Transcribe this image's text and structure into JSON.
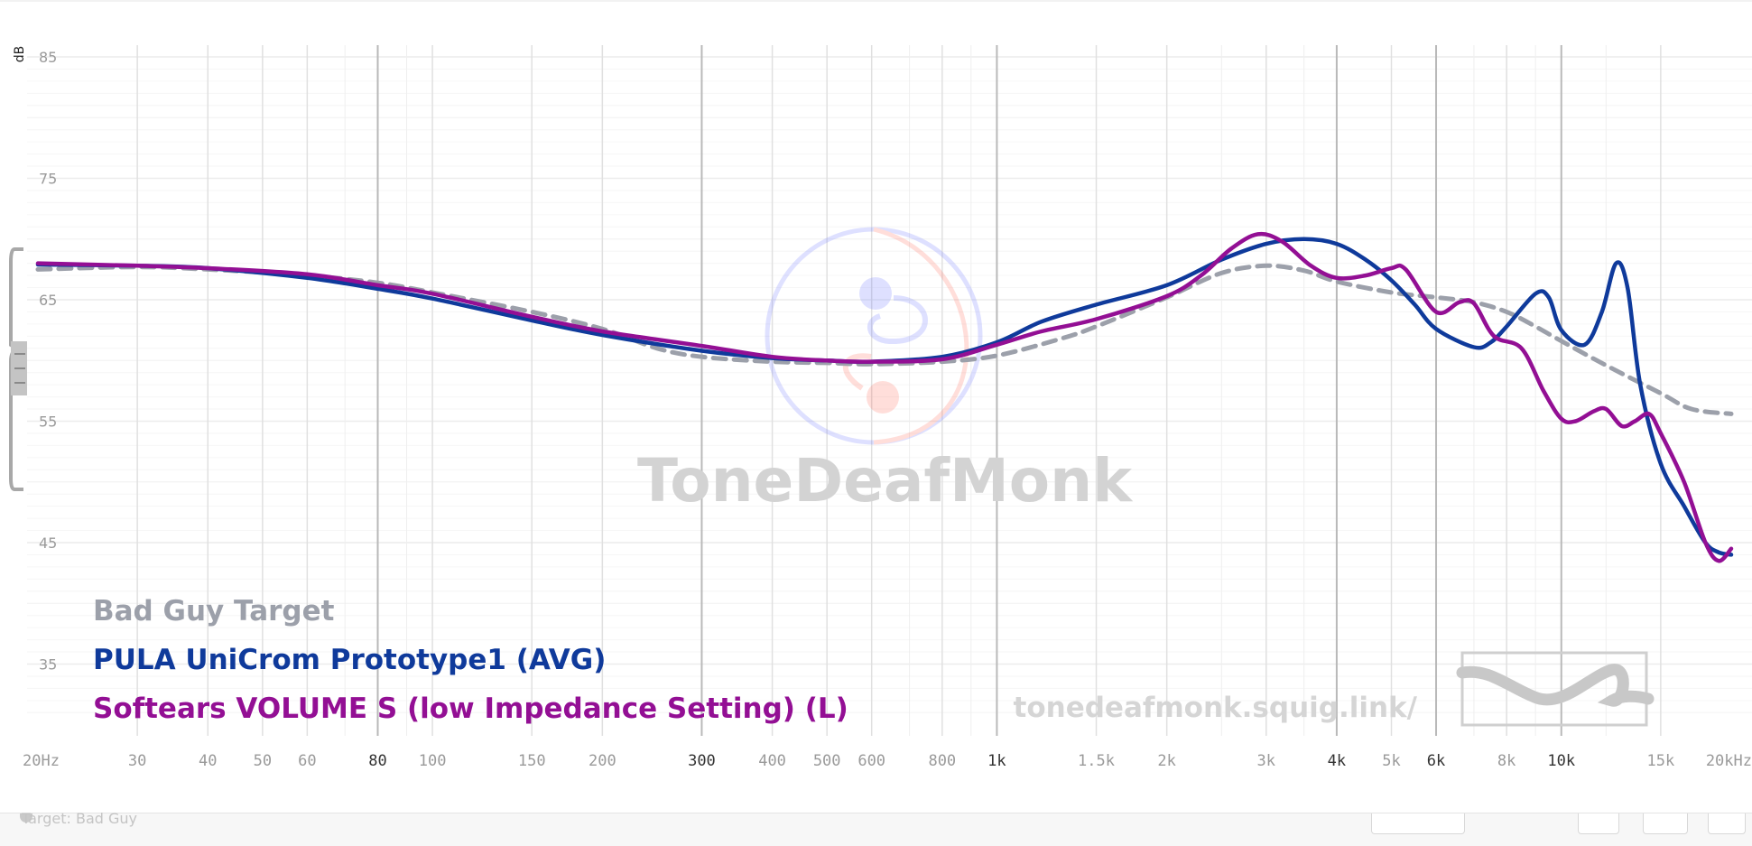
{
  "chart_data": {
    "type": "line",
    "x_scale": "log",
    "xlim": [
      20,
      20000
    ],
    "ylim": [
      30,
      87
    ],
    "ylabel": "dB",
    "y_ticks": [
      35,
      45,
      55,
      65,
      75,
      85
    ],
    "x_ticks": [
      {
        "value": 20,
        "label": "20Hz"
      },
      {
        "value": 30,
        "label": "30"
      },
      {
        "value": 40,
        "label": "40"
      },
      {
        "value": 50,
        "label": "50"
      },
      {
        "value": 60,
        "label": "60"
      },
      {
        "value": 80,
        "label": "80"
      },
      {
        "value": 100,
        "label": "100"
      },
      {
        "value": 150,
        "label": "150"
      },
      {
        "value": 200,
        "label": "200"
      },
      {
        "value": 300,
        "label": "300"
      },
      {
        "value": 400,
        "label": "400"
      },
      {
        "value": 500,
        "label": "500"
      },
      {
        "value": 600,
        "label": "600"
      },
      {
        "value": 800,
        "label": "800"
      },
      {
        "value": 1000,
        "label": "1k"
      },
      {
        "value": 1500,
        "label": "1.5k"
      },
      {
        "value": 2000,
        "label": "2k"
      },
      {
        "value": 3000,
        "label": "3k"
      },
      {
        "value": 4000,
        "label": "4k"
      },
      {
        "value": 5000,
        "label": "5k"
      },
      {
        "value": 6000,
        "label": "6k"
      },
      {
        "value": 8000,
        "label": "8k"
      },
      {
        "value": 10000,
        "label": "10k"
      },
      {
        "value": 15000,
        "label": "15k"
      },
      {
        "value": 20000,
        "label": "20kHz"
      }
    ],
    "grid": true,
    "legend_position": "bottom-left",
    "series": [
      {
        "name": "Bad Guy Target",
        "color": "#9ca0aa",
        "dashed": true,
        "points": [
          [
            20,
            67.5
          ],
          [
            30,
            67.7
          ],
          [
            40,
            67.5
          ],
          [
            60,
            67
          ],
          [
            80,
            66.4
          ],
          [
            100,
            65.6
          ],
          [
            150,
            64
          ],
          [
            200,
            62.6
          ],
          [
            250,
            61
          ],
          [
            300,
            60.3
          ],
          [
            400,
            59.9
          ],
          [
            500,
            59.8
          ],
          [
            600,
            59.7
          ],
          [
            800,
            59.9
          ],
          [
            1000,
            60.4
          ],
          [
            1300,
            61.8
          ],
          [
            1500,
            62.8
          ],
          [
            2000,
            65.2
          ],
          [
            2500,
            67.2
          ],
          [
            3000,
            67.8
          ],
          [
            3500,
            67.4
          ],
          [
            4000,
            66.5
          ],
          [
            5000,
            65.6
          ],
          [
            6000,
            65.2
          ],
          [
            7000,
            64.8
          ],
          [
            8000,
            64
          ],
          [
            9000,
            62.8
          ],
          [
            10000,
            61.6
          ],
          [
            12000,
            59.6
          ],
          [
            15000,
            57.3
          ],
          [
            17000,
            56
          ],
          [
            20000,
            55.6
          ]
        ]
      },
      {
        "name": "PULA UniCrom Prototype1 (AVG)",
        "color": "#0f3a9b",
        "dashed": false,
        "points": [
          [
            20,
            67.9
          ],
          [
            30,
            67.8
          ],
          [
            40,
            67.6
          ],
          [
            60,
            66.8
          ],
          [
            80,
            65.9
          ],
          [
            100,
            65.1
          ],
          [
            150,
            63.3
          ],
          [
            200,
            62.1
          ],
          [
            300,
            60.8
          ],
          [
            400,
            60.2
          ],
          [
            500,
            60
          ],
          [
            600,
            59.9
          ],
          [
            800,
            60.3
          ],
          [
            1000,
            61.5
          ],
          [
            1200,
            63.2
          ],
          [
            1500,
            64.6
          ],
          [
            2000,
            66.2
          ],
          [
            2500,
            68.3
          ],
          [
            3000,
            69.6
          ],
          [
            3500,
            70
          ],
          [
            4000,
            69.6
          ],
          [
            4500,
            68.3
          ],
          [
            5000,
            66.6
          ],
          [
            5500,
            64.6
          ],
          [
            6000,
            62.6
          ],
          [
            7000,
            61.1
          ],
          [
            7500,
            61.5
          ],
          [
            8000,
            62.8
          ],
          [
            9000,
            65.5
          ],
          [
            9500,
            65.2
          ],
          [
            10000,
            62.5
          ],
          [
            11000,
            61.3
          ],
          [
            11800,
            64
          ],
          [
            12500,
            68
          ],
          [
            13100,
            66
          ],
          [
            13800,
            58
          ],
          [
            15000,
            51.5
          ],
          [
            16500,
            48
          ],
          [
            18000,
            45
          ],
          [
            19000,
            44.2
          ],
          [
            20000,
            44
          ]
        ]
      },
      {
        "name": "Softears VOLUME S (low Impedance Setting) (L)",
        "color": "#930f94",
        "dashed": false,
        "points": [
          [
            20,
            68
          ],
          [
            30,
            67.8
          ],
          [
            40,
            67.6
          ],
          [
            60,
            67.1
          ],
          [
            80,
            66.2
          ],
          [
            100,
            65.5
          ],
          [
            150,
            63.6
          ],
          [
            200,
            62.4
          ],
          [
            300,
            61.2
          ],
          [
            400,
            60.3
          ],
          [
            500,
            60
          ],
          [
            600,
            59.9
          ],
          [
            800,
            60.1
          ],
          [
            1000,
            61.3
          ],
          [
            1200,
            62.4
          ],
          [
            1500,
            63.4
          ],
          [
            2000,
            65.3
          ],
          [
            2300,
            67
          ],
          [
            2600,
            69.2
          ],
          [
            2900,
            70.4
          ],
          [
            3200,
            69.8
          ],
          [
            3600,
            67.8
          ],
          [
            4000,
            66.8
          ],
          [
            4500,
            67
          ],
          [
            5000,
            67.6
          ],
          [
            5300,
            67.5
          ],
          [
            6000,
            64
          ],
          [
            6600,
            64.8
          ],
          [
            7000,
            64.7
          ],
          [
            7600,
            62
          ],
          [
            8500,
            61
          ],
          [
            9300,
            57.5
          ],
          [
            10000,
            55.2
          ],
          [
            10600,
            55
          ],
          [
            11400,
            55.8
          ],
          [
            12000,
            56
          ],
          [
            12800,
            54.6
          ],
          [
            13500,
            55
          ],
          [
            14300,
            55.6
          ],
          [
            15000,
            54
          ],
          [
            16500,
            50
          ],
          [
            18000,
            45
          ],
          [
            19000,
            43.5
          ],
          [
            20000,
            44.5
          ]
        ]
      }
    ]
  },
  "watermark": {
    "brand": "ToneDeafMonk",
    "url": "tonedeafmonk.squig.link/",
    "logo_icon": "monk-yin-yang-logo",
    "squiggle_icon": "squiglink-logo"
  },
  "colors": {
    "grid_minor": "#e6e6e6",
    "grid_major": "#c8c8c8",
    "axis_text": "#999999",
    "axis_text_major": "#333333",
    "watermark": "#d8d8d8"
  },
  "bottom_bar": {
    "target_label": "Target: Bad Guy"
  }
}
